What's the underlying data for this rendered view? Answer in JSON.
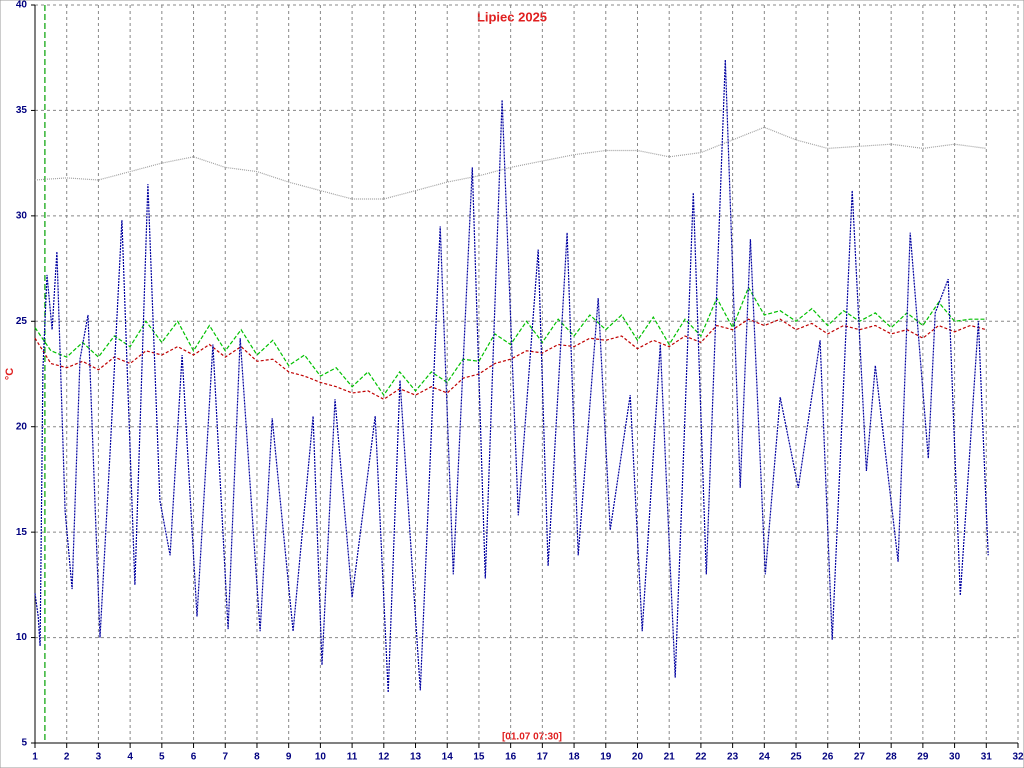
{
  "chart_data": {
    "type": "line",
    "title": "Lipiec 2025",
    "ylabel": "°C",
    "annotation": "[01.07 07:30]",
    "marker_x": 1.3125,
    "marker_color": "#00a000",
    "xlim": [
      1,
      32
    ],
    "xticks": [
      1,
      2,
      3,
      4,
      5,
      6,
      7,
      8,
      9,
      10,
      11,
      12,
      13,
      14,
      15,
      16,
      17,
      18,
      19,
      20,
      21,
      22,
      23,
      24,
      25,
      26,
      27,
      28,
      29,
      30,
      31,
      32
    ],
    "ylim": [
      5,
      40
    ],
    "yticks": [
      5,
      10,
      15,
      20,
      25,
      30,
      35,
      40
    ],
    "grid": true,
    "series": [
      {
        "color": "#a0a0a0",
        "dash": "1,1",
        "x": [
          1,
          2,
          3,
          4,
          5,
          6,
          7,
          8,
          9,
          10,
          11,
          12,
          13,
          14,
          15,
          16,
          17,
          18,
          19,
          20,
          21,
          22,
          23,
          24,
          25,
          26,
          27,
          28,
          29,
          30,
          31
        ],
        "values": [
          31.7,
          31.8,
          31.7,
          32.1,
          32.5,
          32.8,
          32.3,
          32.1,
          31.6,
          31.2,
          30.8,
          30.8,
          31.2,
          31.6,
          31.9,
          32.3,
          32.6,
          32.9,
          33.1,
          33.1,
          32.8,
          33.0,
          33.6,
          34.2,
          33.6,
          33.2,
          33.3,
          33.4,
          33.2,
          33.4,
          33.2
        ]
      },
      {
        "color": "#c00000",
        "dash": "3,2",
        "x": [
          1,
          1.5,
          2,
          2.5,
          3,
          3.5,
          4,
          4.5,
          5,
          5.5,
          6,
          6.5,
          7,
          7.5,
          8,
          8.5,
          9,
          9.5,
          10,
          10.5,
          11,
          11.5,
          12,
          12.5,
          13,
          13.5,
          14,
          14.5,
          15,
          15.5,
          16,
          16.5,
          17,
          17.5,
          18,
          18.5,
          19,
          19.5,
          20,
          20.5,
          21,
          21.5,
          22,
          22.5,
          23,
          23.5,
          24,
          24.5,
          25,
          25.5,
          26,
          26.5,
          27,
          27.5,
          28,
          28.5,
          29,
          29.5,
          30,
          30.5,
          31
        ],
        "values": [
          24.2,
          23,
          22.8,
          23.1,
          22.7,
          23.3,
          23,
          23.6,
          23.4,
          23.8,
          23.4,
          23.9,
          23.3,
          23.8,
          23.1,
          23.2,
          22.6,
          22.4,
          22.1,
          21.9,
          21.6,
          21.7,
          21.3,
          21.8,
          21.5,
          21.9,
          21.6,
          22.3,
          22.5,
          23,
          23.2,
          23.6,
          23.5,
          23.9,
          23.8,
          24.2,
          24.1,
          24.3,
          23.7,
          24.1,
          23.8,
          24.3,
          24,
          24.8,
          24.6,
          25.1,
          24.8,
          25.1,
          24.6,
          24.9,
          24.4,
          24.8,
          24.6,
          24.8,
          24.4,
          24.6,
          24.2,
          24.8,
          24.5,
          24.8,
          24.6
        ]
      },
      {
        "color": "#00c000",
        "dash": "4,2",
        "x": [
          1,
          1.5,
          2,
          2.5,
          3,
          3.5,
          4,
          4.5,
          5,
          5.5,
          6,
          6.5,
          7,
          7.5,
          8,
          8.5,
          9,
          9.5,
          10,
          10.5,
          11,
          11.5,
          12,
          12.5,
          13,
          13.5,
          14,
          14.5,
          15,
          15.5,
          16,
          16.5,
          17,
          17.5,
          18,
          18.5,
          19,
          19.5,
          20,
          20.5,
          21,
          21.5,
          22,
          22.5,
          23,
          23.5,
          24,
          24.5,
          25,
          25.5,
          26,
          26.5,
          27,
          27.5,
          28,
          28.5,
          29,
          29.5,
          30,
          30.5,
          31
        ],
        "values": [
          24.7,
          23.6,
          23.3,
          24,
          23.3,
          24.3,
          23.8,
          25,
          24,
          25,
          23.6,
          24.8,
          23.6,
          24.6,
          23.4,
          24.1,
          22.9,
          23.4,
          22.4,
          22.8,
          21.9,
          22.6,
          21.5,
          22.6,
          21.7,
          22.6,
          22.1,
          23.2,
          23.1,
          24.4,
          23.9,
          25,
          24,
          25.1,
          24.3,
          25.3,
          24.6,
          25.3,
          24.1,
          25.2,
          23.9,
          25.1,
          24.3,
          26.1,
          24.7,
          26.6,
          25.3,
          25.5,
          25,
          25.6,
          24.8,
          25.5,
          25,
          25.4,
          24.7,
          25.4,
          24.8,
          25.9,
          25,
          25.1,
          25.1
        ]
      },
      {
        "color": "#0000a0",
        "dash": "2,1",
        "x": [
          1,
          1.1,
          1.16,
          1.25,
          1.38,
          1.54,
          1.69,
          1.95,
          2.17,
          2.42,
          2.67,
          3.05,
          3.37,
          3.74,
          4.15,
          4.56,
          4.94,
          5.26,
          5.64,
          6.11,
          6.61,
          7.09,
          7.47,
          8.1,
          8.48,
          9.14,
          9.77,
          10.05,
          10.46,
          11,
          11.73,
          12.14,
          12.51,
          13.15,
          13.78,
          14.19,
          14.79,
          15.2,
          15.73,
          16.24,
          16.87,
          17.18,
          17.78,
          18.13,
          18.76,
          19.14,
          19.77,
          20.15,
          20.72,
          21.19,
          21.76,
          22.17,
          22.77,
          23.24,
          23.56,
          24.03,
          24.5,
          25.07,
          25.76,
          26.14,
          26.77,
          27.22,
          27.5,
          28.22,
          28.6,
          29.17,
          29.39,
          29.8,
          30.18,
          30.75,
          31.06
        ],
        "values": [
          12.1,
          11,
          9.6,
          22.7,
          27.2,
          24.6,
          28.3,
          16,
          12.3,
          23.2,
          25.3,
          10,
          18.9,
          29.8,
          12.5,
          31.5,
          16.5,
          13.9,
          23.4,
          11,
          23.9,
          10.4,
          24.2,
          10.3,
          20.4,
          10.3,
          20.5,
          8.7,
          21.3,
          11.9,
          20.5,
          7.4,
          22.2,
          7.5,
          29.5,
          13,
          32.3,
          12.8,
          35.5,
          15.8,
          28.4,
          13.4,
          29.2,
          13.9,
          26.1,
          15.1,
          21.5,
          10.3,
          23.9,
          8.1,
          31.1,
          13,
          37.4,
          17.1,
          28.9,
          13,
          21.4,
          17.1,
          24.1,
          9.9,
          31.2,
          17.9,
          22.9,
          13.6,
          29.2,
          18.5,
          25.4,
          27,
          12,
          25,
          13.9
        ]
      }
    ]
  }
}
